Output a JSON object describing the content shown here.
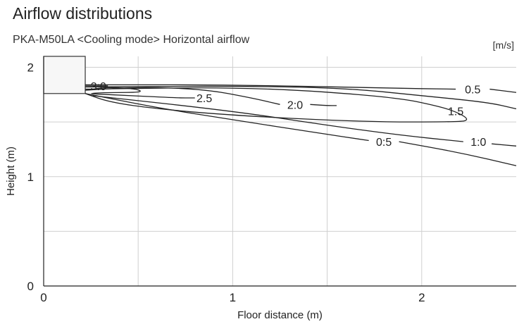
{
  "title": "Airflow distributions",
  "subtitle": "PKA-M50LA <Cooling mode> Horizontal airflow",
  "unit": "[m/s]",
  "chart_data": {
    "type": "line",
    "title": "Airflow distributions",
    "subtitle": "PKA-M50LA <Cooling mode> Horizontal airflow",
    "unit": "[m/s]",
    "xlabel": "Floor distance (m)",
    "ylabel": "Height (m)",
    "xlim": [
      0,
      2.5
    ],
    "ylim": [
      0,
      2.1
    ],
    "x_ticks": [
      "0",
      "1",
      "2"
    ],
    "y_ticks": [
      "0",
      "1",
      "2"
    ],
    "grid": true,
    "unit_block": {
      "x": [
        0,
        0.22
      ],
      "y": [
        1.76,
        2.1
      ]
    },
    "series": [
      {
        "name": "3:0",
        "label": "3:0",
        "label_at": [
          0.29,
          1.83
        ],
        "points": [
          [
            0.22,
            1.83
          ],
          [
            0.26,
            1.83
          ],
          [
            0.34,
            1.83
          ]
        ]
      },
      {
        "name": "2.5",
        "label": "2.5",
        "label_at": [
          0.85,
          1.72
        ],
        "points": [
          [
            0.22,
            1.79
          ],
          [
            0.34,
            1.82
          ],
          [
            0.5,
            1.8
          ],
          [
            0.52,
            1.77
          ],
          [
            0.35,
            1.77
          ],
          [
            0.22,
            1.76
          ],
          [
            0.35,
            1.75
          ],
          [
            0.7,
            1.72
          ],
          [
            0.8,
            1.72
          ]
        ]
      },
      {
        "name": "2:0",
        "label": "2:0",
        "label_at": [
          1.33,
          1.66
        ],
        "points": [
          [
            0.22,
            1.79
          ],
          [
            0.5,
            1.82
          ],
          [
            0.85,
            1.8
          ],
          [
            1.1,
            1.72
          ],
          [
            1.25,
            1.66
          ]
        ]
      },
      {
        "name": "2:0",
        "label": "",
        "label_at": null,
        "points": [
          [
            1.41,
            1.66
          ],
          [
            1.5,
            1.65
          ],
          [
            1.55,
            1.65
          ]
        ]
      },
      {
        "name": "1.5",
        "label": "1.5",
        "label_at": [
          2.18,
          1.6
        ],
        "points": [
          [
            0.22,
            1.8
          ],
          [
            1.1,
            1.82
          ],
          [
            1.85,
            1.73
          ],
          [
            2.1,
            1.64
          ],
          [
            2.2,
            1.58
          ],
          [
            2.25,
            1.52
          ],
          [
            2.2,
            1.5
          ],
          [
            1.7,
            1.5
          ],
          [
            1.0,
            1.56
          ],
          [
            0.6,
            1.62
          ],
          [
            0.35,
            1.68
          ],
          [
            0.22,
            1.76
          ]
        ]
      },
      {
        "name": "0.5",
        "label": "0.5",
        "label_at": [
          2.27,
          1.8
        ],
        "points": [
          [
            0.22,
            1.84
          ],
          [
            1.0,
            1.84
          ],
          [
            1.8,
            1.81
          ],
          [
            2.18,
            1.8
          ]
        ]
      },
      {
        "name": "0.5",
        "label": "",
        "label_at": null,
        "points": [
          [
            2.36,
            1.8
          ],
          [
            2.5,
            1.77
          ]
        ]
      },
      {
        "name": "1:0",
        "label": "1:0",
        "label_at": [
          2.3,
          1.32
        ],
        "points": [
          [
            0.22,
            1.82
          ],
          [
            1.0,
            1.83
          ],
          [
            1.6,
            1.81
          ],
          [
            2.0,
            1.74
          ],
          [
            2.35,
            1.68
          ],
          [
            2.5,
            1.62
          ]
        ]
      },
      {
        "name": "1:0",
        "label": "",
        "label_at": null,
        "points": [
          [
            0.26,
            1.74
          ],
          [
            1.0,
            1.6
          ],
          [
            1.5,
            1.47
          ],
          [
            1.88,
            1.38
          ],
          [
            2.22,
            1.32
          ]
        ]
      },
      {
        "name": "1:0",
        "label": "",
        "label_at": null,
        "points": [
          [
            2.37,
            1.3
          ],
          [
            2.5,
            1.28
          ]
        ]
      },
      {
        "name": "0:5",
        "label": "0:5",
        "label_at": [
          1.8,
          1.32
        ],
        "points": [
          [
            0.22,
            1.76
          ],
          [
            0.6,
            1.63
          ],
          [
            1.0,
            1.52
          ],
          [
            1.45,
            1.4
          ],
          [
            1.72,
            1.33
          ]
        ]
      },
      {
        "name": "0:5",
        "label": "",
        "label_at": null,
        "points": [
          [
            1.88,
            1.32
          ],
          [
            2.2,
            1.22
          ],
          [
            2.5,
            1.1
          ]
        ]
      }
    ]
  }
}
